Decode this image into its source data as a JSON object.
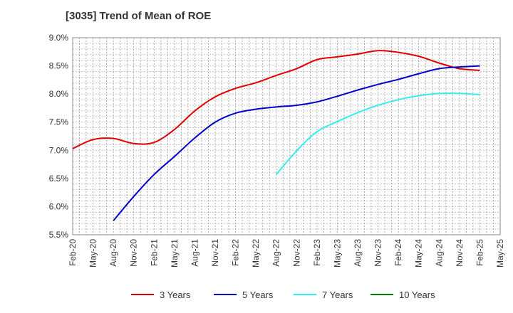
{
  "chart_data": {
    "type": "line",
    "title": "[3035]  Trend of Mean of ROE",
    "xlabel": "",
    "ylabel": "",
    "x": [
      "Feb-20",
      "May-20",
      "Aug-20",
      "Nov-20",
      "Feb-21",
      "May-21",
      "Aug-21",
      "Nov-21",
      "Feb-22",
      "May-22",
      "Aug-22",
      "Nov-22",
      "Feb-23",
      "May-23",
      "Aug-23",
      "Nov-23",
      "Feb-24",
      "May-24",
      "Aug-24",
      "Nov-24",
      "Feb-25",
      "May-25"
    ],
    "y_ticks": [
      "5.5%",
      "6.0%",
      "6.5%",
      "7.0%",
      "7.5%",
      "8.0%",
      "8.5%",
      "9.0%"
    ],
    "ylim": [
      5.5,
      9.0
    ],
    "grid": true,
    "legend_position": "bottom",
    "series": [
      {
        "name": "3 Years",
        "color": "#e00000",
        "values": [
          7.03,
          7.19,
          7.21,
          7.12,
          7.14,
          7.37,
          7.7,
          7.95,
          8.1,
          8.2,
          8.33,
          8.45,
          8.61,
          8.66,
          8.71,
          8.77,
          8.74,
          8.67,
          8.55,
          8.45,
          8.42,
          null
        ]
      },
      {
        "name": "5 Years",
        "color": "#0000cc",
        "values": [
          null,
          null,
          5.75,
          6.18,
          6.57,
          6.89,
          7.22,
          7.5,
          7.66,
          7.73,
          7.77,
          7.8,
          7.86,
          7.96,
          8.07,
          8.17,
          8.26,
          8.36,
          8.45,
          8.48,
          8.5,
          null
        ]
      },
      {
        "name": "7 Years",
        "color": "#33eeee",
        "values": [
          null,
          null,
          null,
          null,
          null,
          null,
          null,
          null,
          null,
          null,
          6.57,
          6.99,
          7.33,
          7.51,
          7.67,
          7.8,
          7.9,
          7.97,
          8.01,
          8.01,
          7.99,
          null
        ]
      },
      {
        "name": "10 Years",
        "color": "#008000",
        "values": [
          null,
          null,
          null,
          null,
          null,
          null,
          null,
          null,
          null,
          null,
          null,
          null,
          null,
          null,
          null,
          null,
          null,
          null,
          null,
          null,
          null,
          null
        ]
      }
    ]
  }
}
